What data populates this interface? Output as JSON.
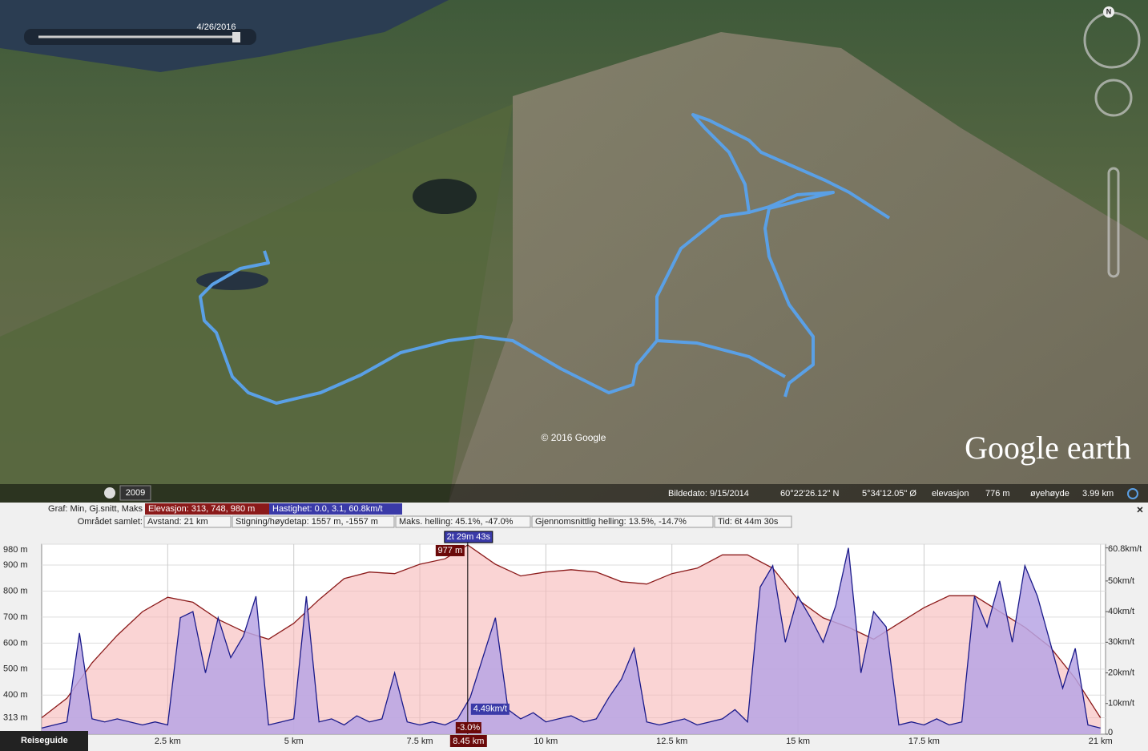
{
  "map": {
    "date_slider": "4/26/2016",
    "copyright": "© 2016 Google",
    "logo": "Google earth",
    "compass": "N",
    "year_badge": "2009"
  },
  "status_bar": {
    "image_date": "Bildedato: 9/15/2014",
    "latitude": "60°22'26.12\" N",
    "longitude": "5°34'12.05\" Ø",
    "elevation_label": "elevasjon",
    "elevation": "776 m",
    "eye_altitude_label": "øyehøyde",
    "eye_altitude": "3.99 km"
  },
  "summary": {
    "graph_label": "Graf: Min, Gj.snitt, Maks",
    "area_label": "Området samlet:",
    "items": [
      "Avstand: 21 km",
      "Stigning/høydetap: 1557 m, -1557 m",
      "Maks. helling: 45.1%, -47.0%",
      "Gjennomsnittlig helling: 13.5%, -14.7%",
      "Tid: 6t 44m 30s"
    ]
  },
  "cursor": {
    "time": "2t 29m 43s",
    "x": {
      "value": 8.45,
      "label": "8.45 km"
    },
    "elevation": {
      "value": 977,
      "label": "977 m"
    },
    "speed": {
      "value": 4.49,
      "label": "4.49km/t"
    },
    "slope": "-3.0%"
  },
  "bottom_button": "Reiseguide",
  "chart_data": {
    "type": "line",
    "xlim": [
      0,
      21.1
    ],
    "xticks": [
      {
        "value": 2.5,
        "label": "2.5 km"
      },
      {
        "value": 5,
        "label": "5 km"
      },
      {
        "value": 7.5,
        "label": "7.5 km"
      },
      {
        "value": 10,
        "label": "10 km"
      },
      {
        "value": 12.5,
        "label": "12.5 km"
      },
      {
        "value": 15,
        "label": "15 km"
      },
      {
        "value": 17.5,
        "label": "17.5 km"
      },
      {
        "value": 21,
        "label": "21 km"
      }
    ],
    "ylim": [
      250,
      980
    ],
    "yticks": [
      {
        "value": 313,
        "label": "313 m"
      },
      {
        "value": 400,
        "label": "400 m"
      },
      {
        "value": 500,
        "label": "500 m"
      },
      {
        "value": 600,
        "label": "600 m"
      },
      {
        "value": 700,
        "label": "700 m"
      },
      {
        "value": 800,
        "label": "800 m"
      },
      {
        "value": 900,
        "label": "900 m"
      },
      {
        "value": 980,
        "label": "980 m"
      }
    ],
    "y2lim": [
      0,
      62
    ],
    "y2ticks": [
      0,
      {
        "value": 10,
        "label": "10km/t"
      },
      {
        "value": 20,
        "label": "20km/t"
      },
      {
        "value": 30,
        "label": "30km/t"
      },
      {
        "value": 40,
        "label": "40km/t"
      },
      {
        "value": 50,
        "label": "50km/t"
      },
      {
        "value": 60.8,
        "label": "60.8km/t"
      }
    ],
    "grid": true,
    "series": [
      {
        "name": "Elevasjon: 313, 748, 980 m",
        "color": "#8b1a1a",
        "fill": "#f6b8b8",
        "x": [
          0,
          0.5,
          1,
          1.5,
          2,
          2.5,
          3,
          3.5,
          4,
          4.5,
          5,
          5.5,
          6,
          6.5,
          7,
          7.5,
          8,
          8.45,
          8.5,
          9,
          9.5,
          10,
          10.5,
          11,
          11.5,
          12,
          12.5,
          13,
          13.5,
          14,
          14.5,
          15,
          15.5,
          16,
          16.5,
          17,
          17.5,
          18,
          18.5,
          19,
          19.5,
          20,
          20.5,
          21
        ],
        "values": [
          313,
          388,
          524,
          630,
          721,
          776,
          757,
          691,
          645,
          615,
          676,
          767,
          848,
          873,
          867,
          903,
          924,
          977,
          970,
          903,
          858,
          873,
          882,
          873,
          836,
          827,
          867,
          888,
          939,
          939,
          888,
          767,
          697,
          661,
          615,
          676,
          736,
          782,
          782,
          721,
          661,
          585,
          464,
          313
        ]
      },
      {
        "name": "Hastighet: 0.0, 3.1, 60.8km/t",
        "color": "#1a1a8a",
        "fill": "#b7a4e4",
        "axis": "y2",
        "x": [
          0,
          0.25,
          0.5,
          0.75,
          1,
          1.25,
          1.5,
          1.75,
          2,
          2.25,
          2.5,
          2.75,
          3,
          3.25,
          3.5,
          3.75,
          4,
          4.25,
          4.5,
          4.75,
          5,
          5.25,
          5.5,
          5.75,
          6,
          6.25,
          6.5,
          6.75,
          7,
          7.25,
          7.5,
          7.75,
          8,
          8.25,
          8.5,
          8.75,
          9,
          9.25,
          9.5,
          9.75,
          10,
          10.25,
          10.5,
          10.75,
          11,
          11.25,
          11.5,
          11.75,
          12,
          12.25,
          12.5,
          12.75,
          13,
          13.25,
          13.5,
          13.75,
          14,
          14.25,
          14.5,
          14.75,
          15,
          15.25,
          15.5,
          15.75,
          16,
          16.25,
          16.5,
          16.75,
          17,
          17.25,
          17.5,
          17.75,
          18,
          18.25,
          18.5,
          18.75,
          19,
          19.25,
          19.5,
          19.75,
          20,
          20.25,
          20.5,
          20.75,
          21
        ],
        "values": [
          2,
          3,
          4,
          33,
          5,
          4,
          5,
          4,
          3,
          4,
          3,
          38,
          40,
          20,
          38,
          25,
          32,
          45,
          3,
          4,
          5,
          45,
          4,
          5,
          3,
          6,
          4,
          5,
          20,
          4,
          3,
          4,
          3,
          5,
          12,
          25,
          38,
          8,
          5,
          7,
          4,
          5,
          6,
          4,
          5,
          12,
          18,
          28,
          4,
          3,
          4,
          5,
          3,
          4,
          5,
          8,
          4,
          48,
          55,
          30,
          45,
          38,
          30,
          42,
          60.8,
          20,
          40,
          35,
          3,
          4,
          3,
          5,
          3,
          4,
          45,
          35,
          50,
          30,
          55,
          45,
          30,
          15,
          28,
          3,
          2
        ]
      }
    ]
  }
}
